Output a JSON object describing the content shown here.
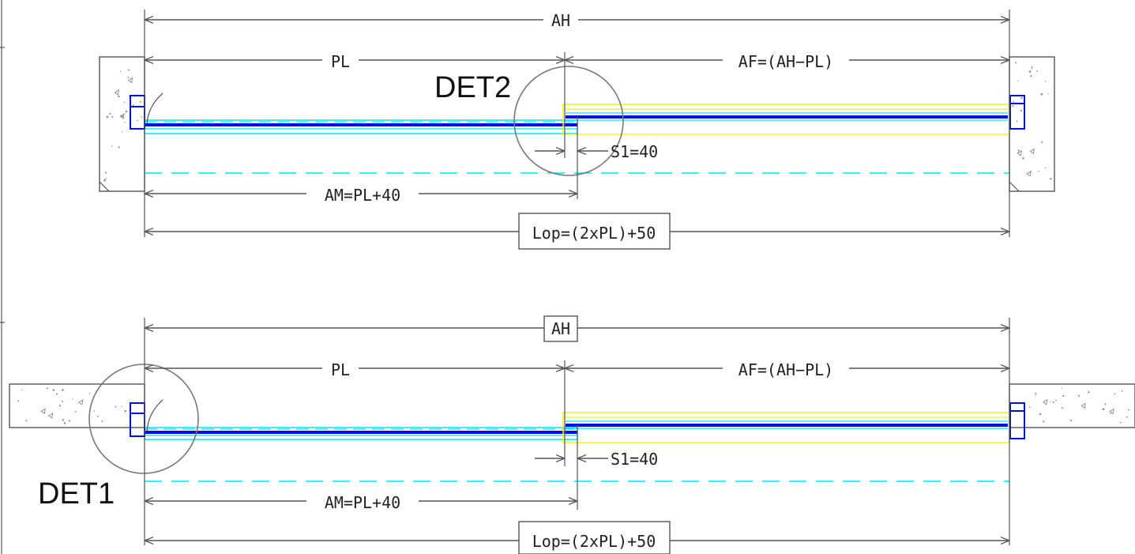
{
  "views": [
    {
      "id": "top",
      "wall_type": "recess",
      "dimensions": {
        "overall": "AH",
        "leaf": "PL",
        "fixed": "AF=(AH−PL)",
        "overlap": "S1=40",
        "moving": "AM=PL+40",
        "opening": "Lop=(2xPL)+50"
      },
      "boxed": [
        "opening"
      ],
      "detail": {
        "label": "DET2",
        "location": "center-overlap"
      }
    },
    {
      "id": "bottom",
      "wall_type": "flush",
      "dimensions": {
        "overall": "AH",
        "leaf": "PL",
        "fixed": "AF=(AH−PL)",
        "overlap": "S1=40",
        "moving": "AM=PL+40",
        "opening": "Lop=(2xPL)+50"
      },
      "boxed": [
        "overall",
        "opening"
      ],
      "detail": {
        "label": "DET1",
        "location": "left-jamb"
      }
    }
  ],
  "colors": {
    "dimension": "#555555",
    "moving_panel_outline": "#00e5f0",
    "glass": "#0010e0",
    "fixed_panel_outline": "#f2f21a",
    "detail_circle": "#777777"
  }
}
